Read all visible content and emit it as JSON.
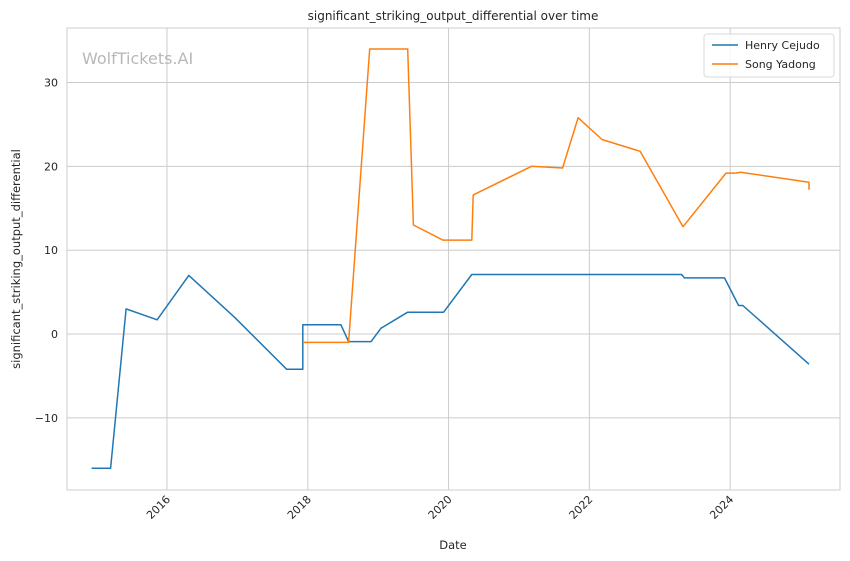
{
  "chart_data": {
    "type": "line",
    "title": "significant_striking_output_differential over time",
    "xlabel": "Date",
    "ylabel": "significant_striking_output_differential",
    "watermark": "WolfTickets.AI",
    "x_ticks": [
      "2016",
      "2018",
      "2020",
      "2022",
      "2024"
    ],
    "y_ticks": [
      "−10",
      "0",
      "10",
      "20",
      "30"
    ],
    "xlim": [
      2014.58,
      2025.56
    ],
    "ylim": [
      -18.6,
      36.5
    ],
    "grid": true,
    "legend_position": "top-right",
    "colors": {
      "Henry Cejudo": "#1f77b4",
      "Song Yadong": "#ff7f0e"
    },
    "series": [
      {
        "name": "Henry Cejudo",
        "x": [
          2014.93,
          2015.2,
          2015.42,
          2015.86,
          2016.31,
          2016.96,
          2017.7,
          2017.93,
          2017.93,
          2018.47,
          2018.58,
          2018.9,
          2019.04,
          2019.42,
          2019.93,
          2020.33,
          2023.31,
          2023.35,
          2023.92,
          2024.12,
          2024.18,
          2025.12
        ],
        "y": [
          -16,
          -16,
          3,
          1.7,
          7,
          2,
          -4.2,
          -4.2,
          1.1,
          1.1,
          -0.9,
          -0.9,
          0.7,
          2.6,
          2.6,
          7.1,
          7.1,
          6.7,
          6.7,
          3.4,
          3.4,
          -3.6
        ]
      },
      {
        "name": "Song Yadong",
        "x": [
          2017.93,
          2018.58,
          2018.88,
          2019.42,
          2019.5,
          2019.92,
          2020.33,
          2020.35,
          2021.18,
          2021.62,
          2021.84,
          2022.18,
          2022.72,
          2023.33,
          2023.94,
          2024.08,
          2024.15,
          2025.12,
          2025.12
        ],
        "y": [
          -1,
          -1,
          34,
          34,
          13,
          11.2,
          11.2,
          16.6,
          20,
          19.8,
          25.8,
          23.2,
          21.8,
          12.8,
          19.2,
          19.2,
          19.3,
          18.1,
          17.2
        ]
      }
    ]
  }
}
